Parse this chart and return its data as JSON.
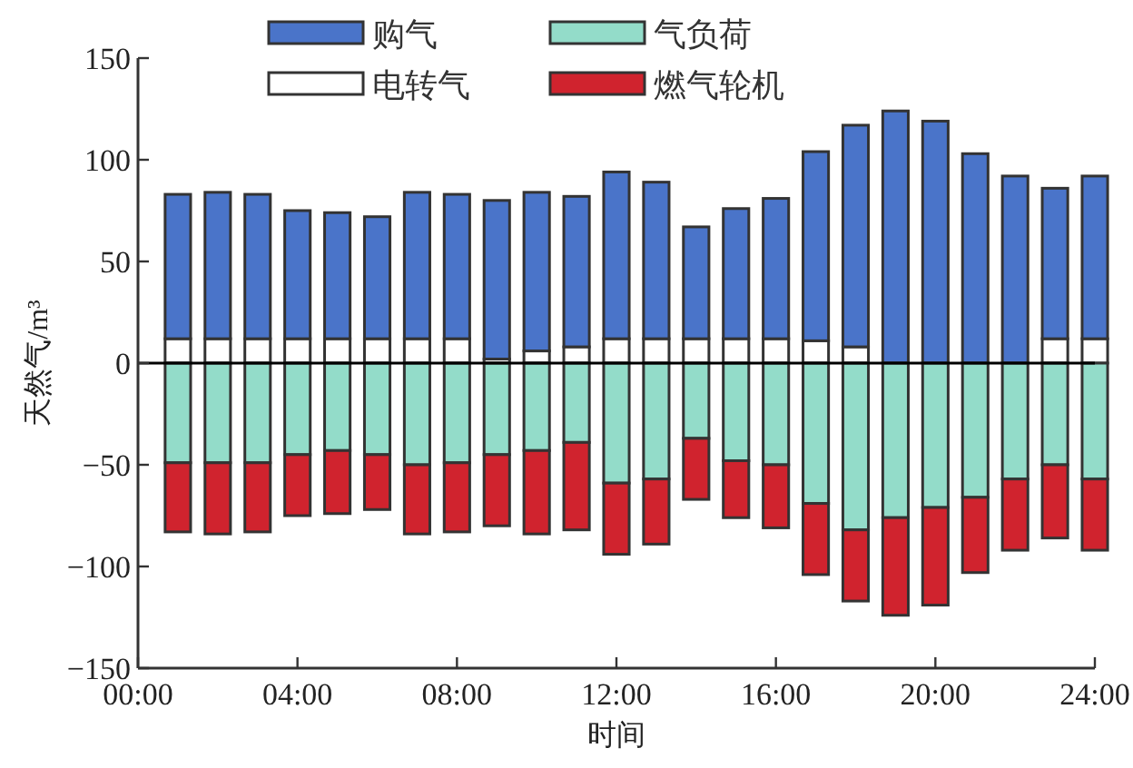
{
  "chart_data": {
    "type": "bar",
    "stacked": true,
    "xlabel": "时间",
    "ylabel": "天然气/m³",
    "x": [
      1,
      2,
      3,
      4,
      5,
      6,
      7,
      8,
      9,
      10,
      11,
      12,
      13,
      14,
      15,
      16,
      17,
      18,
      19,
      20,
      21,
      22,
      23,
      24
    ],
    "xlim": [
      0,
      24
    ],
    "xticks": [
      {
        "value": 0,
        "label": "00:00"
      },
      {
        "value": 4,
        "label": "04:00"
      },
      {
        "value": 8,
        "label": "08:00"
      },
      {
        "value": 12,
        "label": "12:00"
      },
      {
        "value": 16,
        "label": "16:00"
      },
      {
        "value": 20,
        "label": "20:00"
      },
      {
        "value": 24,
        "label": "24:00"
      }
    ],
    "ylim": [
      -150,
      150
    ],
    "yticks": [
      -150,
      -100,
      -50,
      0,
      50,
      100,
      150
    ],
    "legend": "top",
    "ref_lines": [
      {
        "axis": "y",
        "value": 0,
        "color": "#000000"
      }
    ],
    "series": [
      {
        "name": "电转气",
        "color": "#ffffff",
        "values": [
          12,
          12,
          12,
          12,
          12,
          12,
          12,
          12,
          2,
          6,
          8,
          12,
          12,
          12,
          12,
          12,
          11,
          8,
          0,
          0,
          0,
          0,
          12,
          12
        ]
      },
      {
        "name": "购气",
        "color": "#4a74c9",
        "values": [
          71,
          72,
          71,
          63,
          62,
          60,
          72,
          71,
          78,
          78,
          74,
          82,
          77,
          55,
          64,
          69,
          93,
          109,
          124,
          119,
          103,
          92,
          74,
          80
        ]
      },
      {
        "name": "气负荷",
        "color": "#93dcc9",
        "values": [
          -49,
          -49,
          -49,
          -45,
          -43,
          -45,
          -50,
          -49,
          -45,
          -43,
          -39,
          -59,
          -57,
          -37,
          -48,
          -50,
          -69,
          -82,
          -76,
          -71,
          -66,
          -57,
          -50,
          -57
        ]
      },
      {
        "name": "燃气轮机",
        "color": "#d0232e",
        "values": [
          -34,
          -35,
          -34,
          -30,
          -31,
          -27,
          -34,
          -34,
          -35,
          -41,
          -43,
          -35,
          -32,
          -30,
          -28,
          -31,
          -35,
          -35,
          -48,
          -48,
          -37,
          -35,
          -36,
          -35
        ]
      }
    ]
  }
}
